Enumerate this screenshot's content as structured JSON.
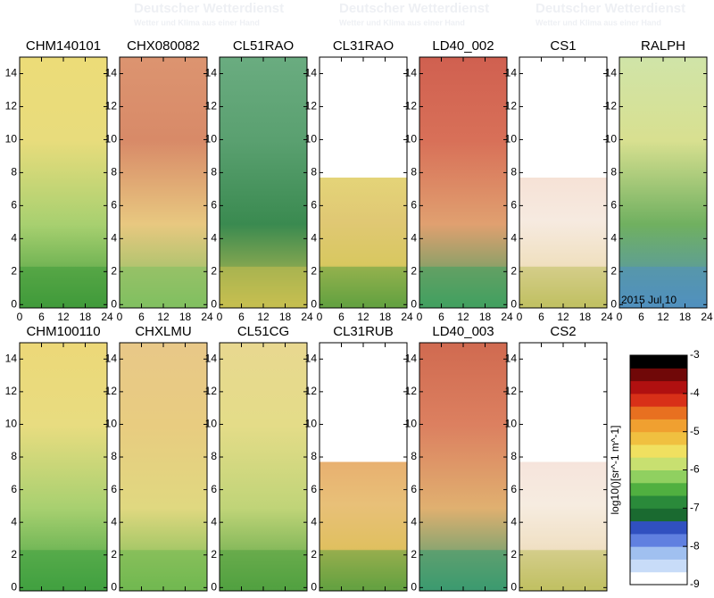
{
  "watermark": {
    "title": "Deutscher Wetterdienst",
    "subtitle": "Wetter und Klima aus einer Hand"
  },
  "chart_data": [
    {
      "type": "heatmap",
      "title": "CHM140101",
      "xlim": [
        0,
        24
      ],
      "xticks": [
        0,
        6,
        12,
        18,
        24
      ],
      "ylim": [
        -0.2,
        15
      ],
      "yticks": [
        0,
        2,
        4,
        6,
        8,
        10,
        12,
        14
      ],
      "colors": [
        "#ecdc78",
        "#e8dc7c",
        "#a8d070",
        "#3f9a3a"
      ]
    },
    {
      "type": "heatmap",
      "title": "CHX080082",
      "xlim": [
        0,
        24
      ],
      "xticks": [
        0,
        6,
        12,
        18,
        24
      ],
      "ylim": [
        -0.2,
        15
      ],
      "yticks": [
        0,
        2,
        4,
        6,
        8,
        10,
        12,
        14
      ],
      "colors": [
        "#dc9470",
        "#d88a68",
        "#e8c880",
        "#80c060"
      ]
    },
    {
      "type": "heatmap",
      "title": "CL51RAO",
      "xlim": [
        0,
        24
      ],
      "xticks": [
        0,
        6,
        12,
        18,
        24
      ],
      "ylim": [
        -0.2,
        15
      ],
      "yticks": [
        0,
        2,
        4,
        6,
        8,
        10,
        12,
        14
      ],
      "colors": [
        "#6aac80",
        "#5aa070",
        "#3a8a50",
        "#c8c050"
      ]
    },
    {
      "type": "heatmap",
      "title": "CL31RAO",
      "xlim": [
        0,
        24
      ],
      "xticks": [
        0,
        6,
        12,
        18,
        24
      ],
      "ylim": [
        -0.2,
        15
      ],
      "yticks": [
        0,
        2,
        4,
        6,
        8,
        10,
        12,
        14
      ],
      "max_range": 7.7,
      "colors": [
        "#e4d478",
        "#e0c874",
        "#d8c860",
        "#60a040"
      ]
    },
    {
      "type": "heatmap",
      "title": "LD40_002",
      "xlim": [
        0,
        24
      ],
      "xticks": [
        0,
        6,
        12,
        18,
        24
      ],
      "ylim": [
        -0.2,
        15
      ],
      "yticks": [
        0,
        2,
        4,
        6,
        8,
        10,
        12,
        14
      ],
      "colors": [
        "#d06050",
        "#d87058",
        "#e0a070",
        "#40a060"
      ]
    },
    {
      "type": "heatmap",
      "title": "CS1",
      "xlim": [
        0,
        24
      ],
      "xticks": [
        0,
        6,
        12,
        18,
        24
      ],
      "ylim": [
        -0.2,
        15
      ],
      "yticks": [
        0,
        2,
        4,
        6,
        8,
        10,
        12,
        14
      ],
      "max_range": 7.7,
      "colors": [
        "#f6e2d6",
        "#f6eae0",
        "#f0e0c0",
        "#c0c060"
      ]
    },
    {
      "type": "heatmap",
      "title": "RALPH",
      "xlim": [
        0,
        24
      ],
      "xticks": [
        0,
        6,
        12,
        18,
        24
      ],
      "ylim": [
        -0.2,
        15
      ],
      "yticks": [
        0,
        2,
        4,
        6,
        8,
        10,
        12,
        14
      ],
      "annotation": "2015 Jul 10",
      "colors": [
        "#d0e4a8",
        "#d8e090",
        "#70b060",
        "#5090c0"
      ]
    },
    {
      "type": "heatmap",
      "title": "CHM100110",
      "xlim": [
        0,
        24
      ],
      "xticks": [
        0,
        6,
        12,
        18,
        24
      ],
      "ylim": [
        -0.2,
        15
      ],
      "yticks": [
        0,
        2,
        4,
        6,
        8,
        10,
        12,
        14
      ],
      "colors": [
        "#ecd878",
        "#e8dc80",
        "#a8d070",
        "#40a040"
      ]
    },
    {
      "type": "heatmap",
      "title": "CHXLMU",
      "xlim": [
        0,
        24
      ],
      "xticks": [
        0,
        6,
        12,
        18,
        24
      ],
      "ylim": [
        -0.2,
        15
      ],
      "yticks": [
        0,
        2,
        4,
        6,
        8,
        10,
        12,
        14
      ],
      "colors": [
        "#e8c888",
        "#e8cc80",
        "#e0d880",
        "#70b850"
      ]
    },
    {
      "type": "heatmap",
      "title": "CL51CG",
      "xlim": [
        0,
        24
      ],
      "xticks": [
        0,
        6,
        12,
        18,
        24
      ],
      "ylim": [
        -0.2,
        15
      ],
      "yticks": [
        0,
        2,
        4,
        6,
        8,
        10,
        12,
        14
      ],
      "colors": [
        "#e8d890",
        "#e4dc88",
        "#c0d478",
        "#50a040"
      ]
    },
    {
      "type": "heatmap",
      "title": "CL31RUB",
      "xlim": [
        0,
        24
      ],
      "xticks": [
        0,
        6,
        12,
        18,
        24
      ],
      "ylim": [
        -0.2,
        15
      ],
      "yticks": [
        0,
        2,
        4,
        6,
        8,
        10,
        12,
        14
      ],
      "max_range": 7.7,
      "colors": [
        "#e8b070",
        "#e8c078",
        "#e0c060",
        "#60a040"
      ]
    },
    {
      "type": "heatmap",
      "title": "LD40_003",
      "xlim": [
        0,
        24
      ],
      "xticks": [
        0,
        6,
        12,
        18,
        24
      ],
      "ylim": [
        -0.2,
        15
      ],
      "yticks": [
        0,
        2,
        4,
        6,
        8,
        10,
        12,
        14
      ],
      "colors": [
        "#d06a50",
        "#dc8060",
        "#e0b070",
        "#3a9a70"
      ]
    },
    {
      "type": "heatmap",
      "title": "CS2",
      "xlim": [
        0,
        24
      ],
      "xticks": [
        0,
        6,
        12,
        18,
        24
      ],
      "ylim": [
        -0.2,
        15
      ],
      "yticks": [
        0,
        2,
        4,
        6,
        8,
        10,
        12,
        14
      ],
      "max_range": 7.7,
      "colors": [
        "#f6e4dc",
        "#f6ece0",
        "#f0e0c4",
        "#c0c060"
      ]
    },
    {
      "type": "colorbar",
      "label": "log10()[sr^-1 m^-1]",
      "ylim": [
        -9,
        -3
      ],
      "yticks": [
        -3,
        -4,
        -5,
        -6,
        -7,
        -8,
        -9
      ],
      "colors": [
        "#ffffff",
        "#c8dcf8",
        "#a0c0f0",
        "#6080e0",
        "#3050c0",
        "#1a6a30",
        "#2a8a3a",
        "#50b040",
        "#90d060",
        "#c8e070",
        "#f0e060",
        "#f0c040",
        "#f0a030",
        "#e87020",
        "#d83018",
        "#b01010",
        "#700808",
        "#000000"
      ]
    }
  ]
}
